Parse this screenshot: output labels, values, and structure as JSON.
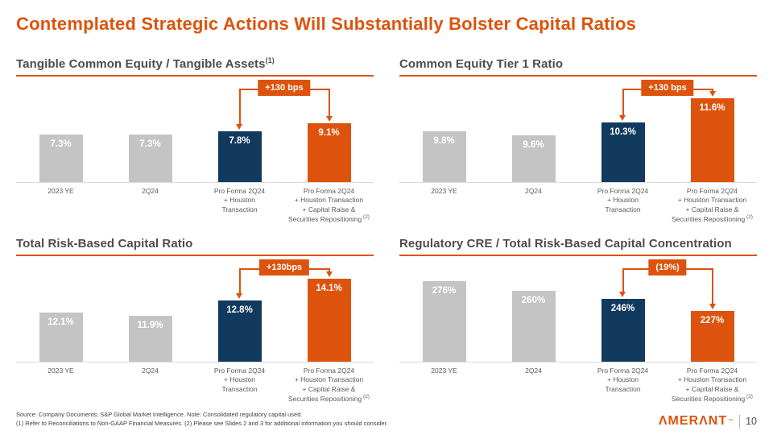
{
  "slide": {
    "title": "Contemplated Strategic Actions Will Substantially Bolster Capital Ratios",
    "footer_line1": "Source: Company Documents; S&P Global Market Intelligence. Note: Consolidated regulatory capital used.",
    "footer_line2": "(1) Refer to Reconciliations to Non-GAAP Financial Measures. (2) Please see Slides 2 and 3 for additional information you should consider.",
    "logo_text": "ΛMERΛNT",
    "logo_tm": "™",
    "page_number": "10"
  },
  "colors": {
    "orange": "#DD530D",
    "navy": "#123A5F",
    "gray": "#C4C4C4",
    "axis": "#DBDBDB",
    "header_text": "#4D4D4D",
    "label_text": "#595959",
    "footer_text": "#404040"
  },
  "chart_data": [
    {
      "type": "bar",
      "title": "Tangible Common Equity / Tangible Assets",
      "sup": "(1)",
      "categories": [
        "2023 YE",
        "2Q24",
        "Pro Forma 2Q24\n+ Houston\nTransaction",
        "Pro Forma 2Q24\n+ Houston Transaction\n+ Capital Raise &\nSecurities Repositioning"
      ],
      "category_sup": "(2)",
      "values": [
        7.3,
        7.3,
        7.8,
        9.1
      ],
      "labels": [
        "7.3%",
        "7.3%",
        "7.8%",
        "9.1%"
      ],
      "bar_colors": [
        "gray",
        "gray",
        "navy",
        "orange"
      ],
      "ylim": [
        0,
        16.2
      ],
      "grid": false,
      "callout": {
        "label": "+130 bps",
        "from_index": 2,
        "to_index": 3
      }
    },
    {
      "type": "bar",
      "title": "Common Equity Tier 1 Ratio",
      "categories": [
        "2023 YE",
        "2Q24",
        "Pro Forma 2Q24\n+ Houston\nTransaction",
        "Pro Forma 2Q24\n+ Houston Transaction\n+ Capital Raise &\nSecurities Repositioning"
      ],
      "category_sup": "(2)",
      "values": [
        9.8,
        9.6,
        10.3,
        11.6
      ],
      "labels": [
        "9.8%",
        "9.6%",
        "10.3%",
        "11.6%"
      ],
      "bar_colors": [
        "gray",
        "gray",
        "navy",
        "orange"
      ],
      "ylim": [
        7.1,
        12.7
      ],
      "grid": false,
      "callout": {
        "label": "+130 bps",
        "from_index": 2,
        "to_index": 3
      }
    },
    {
      "type": "bar",
      "title": "Total Risk-Based Capital Ratio",
      "categories": [
        "2023 YE",
        "2Q24",
        "Pro Forma 2Q24\n+ Houston\nTransaction",
        "Pro Forma 2Q24\n+ Houston Transaction\n+ Capital Raise &\nSecurities Repositioning"
      ],
      "category_sup": "(2)",
      "values": [
        12.1,
        11.9,
        12.8,
        14.1
      ],
      "labels": [
        "12.1%",
        "11.9%",
        "12.8%",
        "14.1%"
      ],
      "bar_colors": [
        "gray",
        "gray",
        "navy",
        "orange"
      ],
      "ylim": [
        9.2,
        15.4
      ],
      "grid": false,
      "callout": {
        "label": "+130bps",
        "from_index": 2,
        "to_index": 3
      }
    },
    {
      "type": "bar",
      "title": "Regulatory CRE / Total Risk-Based Capital Concentration",
      "categories": [
        "2023 YE",
        "2Q24",
        "Pro Forma 2Q24\n+ Houston\nTransaction",
        "Pro Forma 2Q24\n+ Houston Transaction\n+ Capital Raise &\nSecurities Repositioning"
      ],
      "category_sup": "(2)",
      "values": [
        276,
        260,
        246,
        227
      ],
      "labels": [
        "276%",
        "260%",
        "246%",
        "227%"
      ],
      "bar_colors": [
        "gray",
        "gray",
        "navy",
        "orange"
      ],
      "ylim": [
        143,
        316
      ],
      "grid": false,
      "callout": {
        "label": "(19%)",
        "from_index": 2,
        "to_index": 3
      }
    }
  ]
}
